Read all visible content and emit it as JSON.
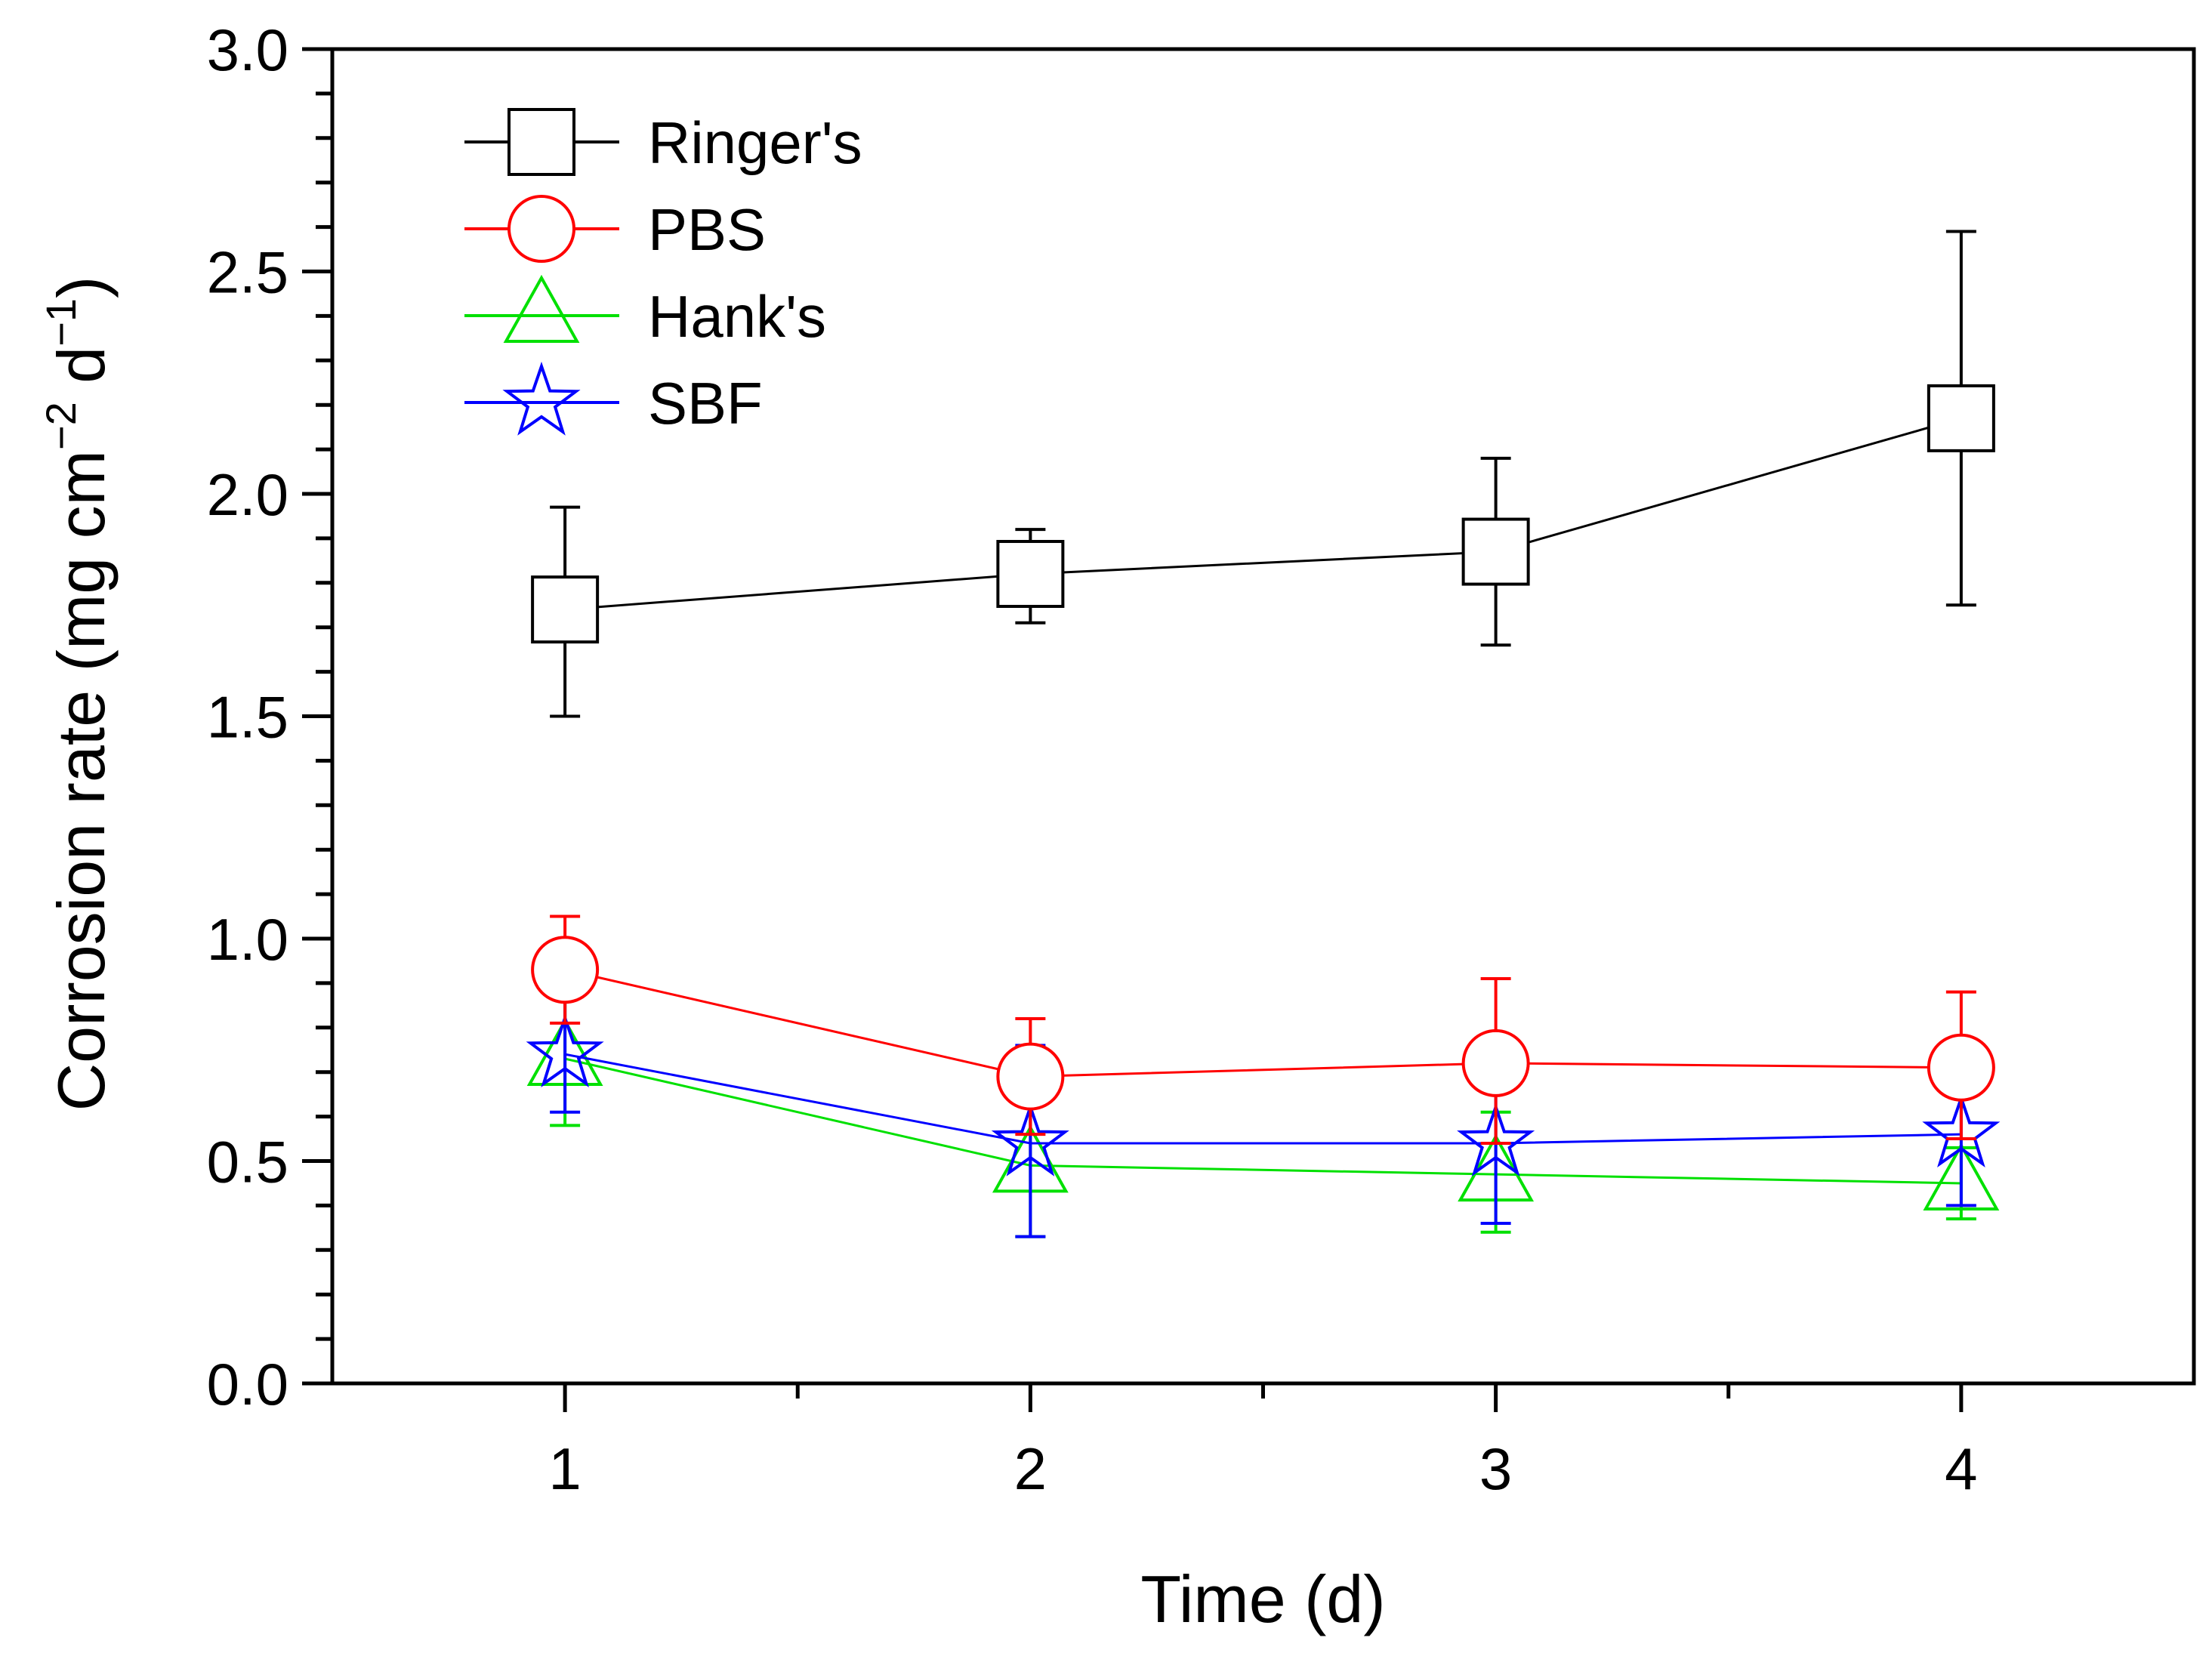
{
  "chart_data": {
    "type": "line",
    "title": "",
    "xlabel": "Time (d)",
    "ylabel": {
      "main": "Corrosion rate (mg cm",
      "sup1": "−2",
      "mid": " d",
      "sup2": "−1",
      "end": ")"
    },
    "xlim": [
      0.5,
      4.5
    ],
    "ylim": [
      0.0,
      3.0
    ],
    "x": [
      1,
      2,
      3,
      4
    ],
    "x_ticks": [
      {
        "value": 1,
        "label": "1"
      },
      {
        "value": 2,
        "label": "2"
      },
      {
        "value": 3,
        "label": "3"
      },
      {
        "value": 4,
        "label": "4"
      }
    ],
    "y_ticks": [
      {
        "value": 0.0,
        "label": "0.0"
      },
      {
        "value": 0.5,
        "label": "0.5"
      },
      {
        "value": 1.0,
        "label": "1.0"
      },
      {
        "value": 1.5,
        "label": "1.5"
      },
      {
        "value": 2.0,
        "label": "2.0"
      },
      {
        "value": 2.5,
        "label": "2.5"
      },
      {
        "value": 3.0,
        "label": "3.0"
      }
    ],
    "grid": false,
    "legend_position": "top-left",
    "series": [
      {
        "name": "Ringer's",
        "color": "#000000",
        "marker": "square",
        "values": [
          1.74,
          1.82,
          1.87,
          2.17
        ],
        "err_upper": [
          1.97,
          1.92,
          2.08,
          2.59
        ],
        "err_lower": [
          1.5,
          1.71,
          1.66,
          1.75
        ]
      },
      {
        "name": "PBS",
        "color": "#ff0000",
        "marker": "circle",
        "values": [
          0.93,
          0.69,
          0.72,
          0.71
        ],
        "err_upper": [
          1.05,
          0.82,
          0.91,
          0.88
        ],
        "err_lower": [
          0.81,
          0.56,
          0.54,
          0.55
        ]
      },
      {
        "name": "Hank's",
        "color": "#00e000",
        "marker": "triangle",
        "values": [
          0.73,
          0.49,
          0.47,
          0.45
        ],
        "err_upper": [
          0.89,
          0.64,
          0.61,
          0.53
        ],
        "err_lower": [
          0.58,
          0.33,
          0.34,
          0.37
        ]
      },
      {
        "name": "SBF",
        "color": "#0000ff",
        "marker": "star",
        "values": [
          0.74,
          0.54,
          0.54,
          0.56
        ],
        "err_upper": [
          0.87,
          0.76,
          0.73,
          0.72
        ],
        "err_lower": [
          0.61,
          0.33,
          0.36,
          0.4
        ]
      }
    ]
  }
}
